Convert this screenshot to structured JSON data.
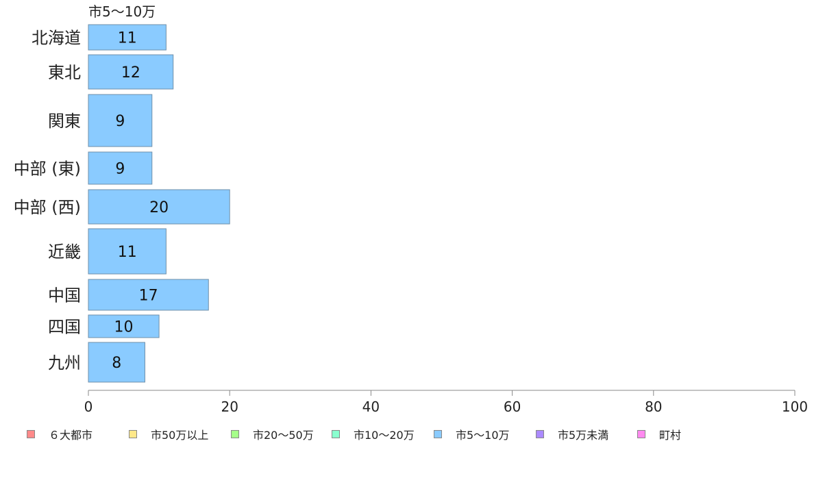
{
  "chart_data": {
    "type": "bar",
    "orientation": "horizontal",
    "stacked": true,
    "series_label": "市5〜10万",
    "categories": [
      "北海道",
      "東北",
      "関東",
      "中部 (東)",
      "中部 (西)",
      "近畿",
      "中国",
      "四国",
      "九州"
    ],
    "series": [
      {
        "name": "６大都市",
        "color": "#ff8a8a",
        "values": [
          0,
          0,
          0,
          0,
          0,
          0,
          0,
          0,
          0
        ]
      },
      {
        "name": "市50万以上",
        "color": "#ffe88a",
        "values": [
          0,
          0,
          0,
          0,
          0,
          0,
          0,
          0,
          0
        ]
      },
      {
        "name": "市20〜50万",
        "color": "#a6ff8a",
        "values": [
          0,
          0,
          0,
          0,
          0,
          0,
          0,
          0,
          0
        ]
      },
      {
        "name": "市10〜20万",
        "color": "#8affcf",
        "values": [
          0,
          0,
          0,
          0,
          0,
          0,
          0,
          0,
          0
        ]
      },
      {
        "name": "市5〜10万",
        "color": "#8acbff",
        "values": [
          11,
          12,
          9,
          9,
          20,
          11,
          17,
          10,
          8
        ]
      },
      {
        "name": "市5万未満",
        "color": "#ab8aff",
        "values": [
          0,
          0,
          0,
          0,
          0,
          0,
          0,
          0,
          0
        ]
      },
      {
        "name": "町村",
        "color": "#ff8af0",
        "values": [
          0,
          0,
          0,
          0,
          0,
          0,
          0,
          0,
          0
        ]
      }
    ],
    "xlim": [
      0,
      100
    ],
    "xticks": [
      0,
      20,
      40,
      60,
      80,
      100
    ],
    "grid": false,
    "legend_position": "bottom"
  }
}
